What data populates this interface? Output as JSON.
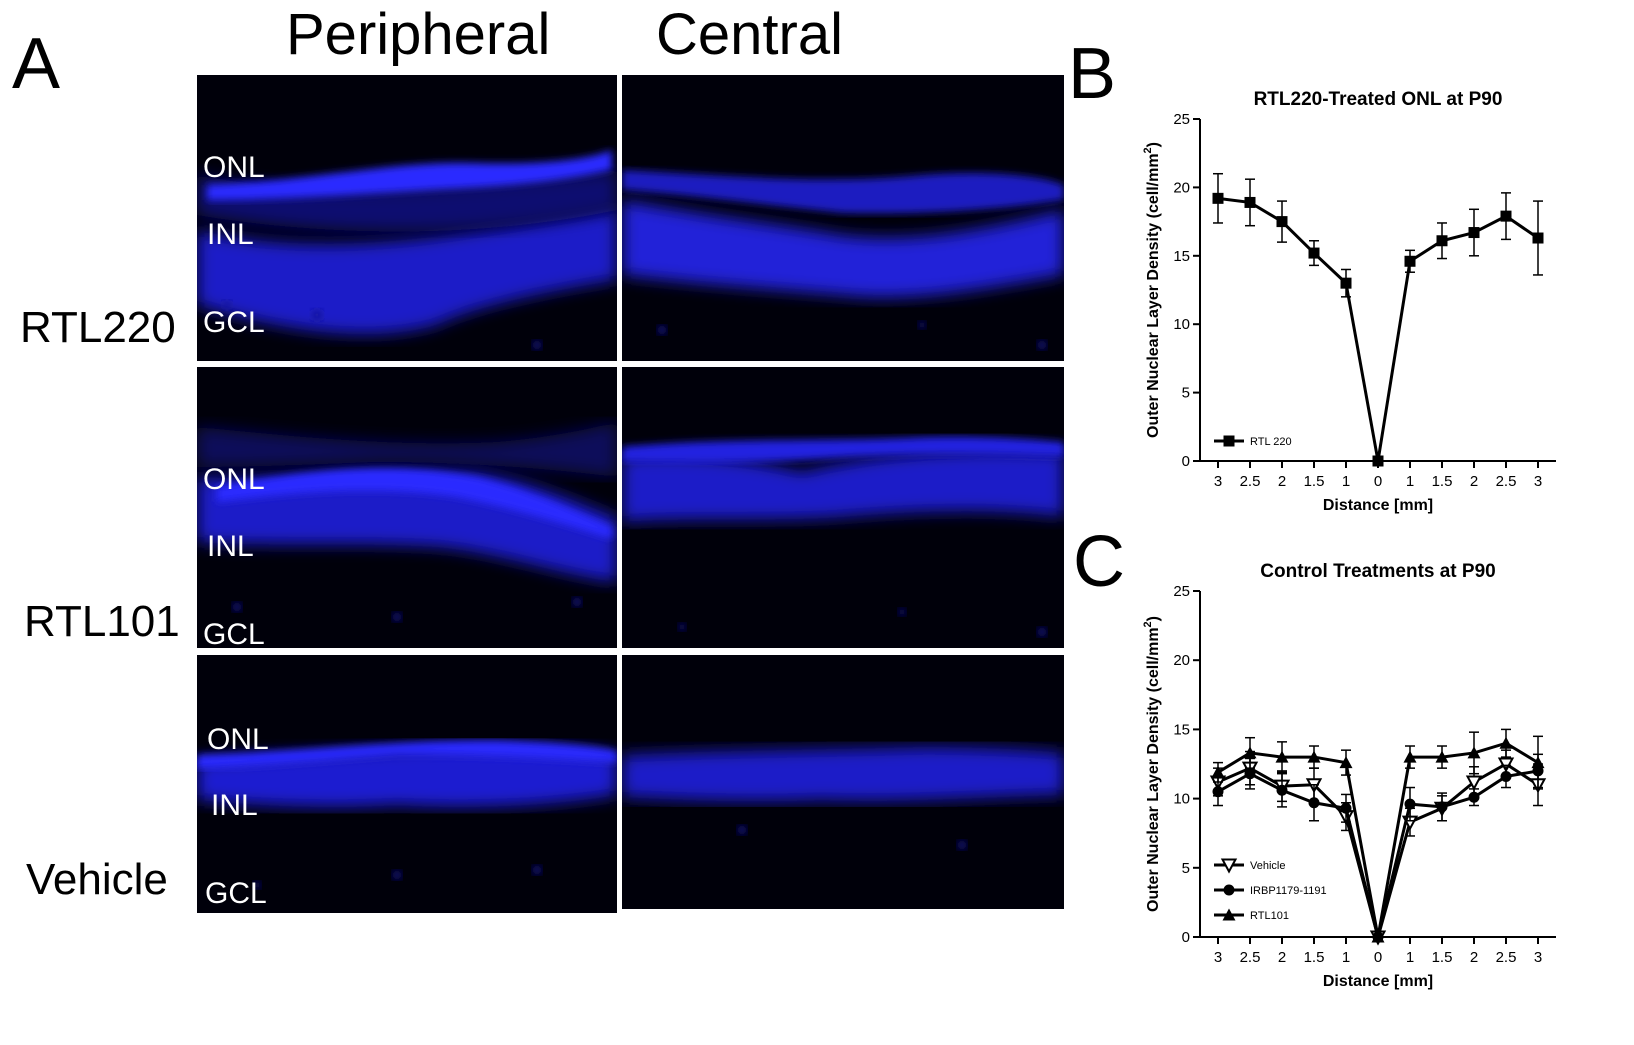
{
  "panel_a": {
    "letter": "A",
    "column_headers": [
      "Peripheral",
      "Central"
    ],
    "rows": [
      {
        "label": "RTL220",
        "peripheral_layers": [
          "ONL",
          "INL",
          "GCL"
        ]
      },
      {
        "label": "RTL101",
        "peripheral_layers": [
          "ONL",
          "INL",
          "GCL"
        ]
      },
      {
        "label": "Vehicle",
        "peripheral_layers": [
          "ONL",
          "INL",
          "GCL"
        ]
      }
    ],
    "stain_color": "#1a1aff",
    "background_color": "#00000a"
  },
  "panel_b": {
    "letter": "B"
  },
  "panel_c": {
    "letter": "C"
  },
  "chart_data": [
    {
      "type": "line",
      "title": "RTL220-Treated ONL at P90",
      "xlabel": "Distance [mm]",
      "ylabel": "Outer Nuclear Layer Density (cell/mm²)",
      "ylabel_text": "Outer Nuclear Layer Density (cell/mm",
      "ylabel_sup": "2",
      "ylabel_close": ")",
      "categories": [
        "3",
        "2.5",
        "2",
        "1.5",
        "1",
        "0",
        "1",
        "1.5",
        "2",
        "2.5",
        "3"
      ],
      "ylim": [
        0,
        25
      ],
      "yticks": [
        0,
        5,
        10,
        15,
        20,
        25
      ],
      "grid": false,
      "legend_position": "bottom-left",
      "series": [
        {
          "name": "RTL 220",
          "marker": "square",
          "values": [
            19.2,
            18.9,
            17.5,
            15.2,
            13.0,
            0.0,
            14.6,
            16.1,
            16.7,
            17.9,
            16.3
          ],
          "errors": [
            1.8,
            1.7,
            1.5,
            0.9,
            1.0,
            0.2,
            0.8,
            1.3,
            1.7,
            1.7,
            2.7
          ]
        }
      ]
    },
    {
      "type": "line",
      "title": "Control Treatments at P90",
      "xlabel": "Distance [mm]",
      "ylabel": "Outer Nuclear Layer Density (cell/mm²)",
      "ylabel_text": "Outer Nuclear Layer Density (cell/mm",
      "ylabel_sup": "2",
      "ylabel_close": ")",
      "categories": [
        "3",
        "2.5",
        "2",
        "1.5",
        "1",
        "0",
        "1",
        "1.5",
        "2",
        "2.5",
        "3"
      ],
      "ylim": [
        0,
        25
      ],
      "yticks": [
        0,
        5,
        10,
        15,
        20,
        25
      ],
      "grid": false,
      "legend_position": "bottom-left",
      "series": [
        {
          "name": "Vehicle",
          "marker": "triangle-down-open",
          "values": [
            11.2,
            12.2,
            10.9,
            11.0,
            8.7,
            0.0,
            8.3,
            9.3,
            11.2,
            12.5,
            11.0
          ],
          "errors": [
            1.0,
            1.2,
            1.1,
            1.2,
            1.0,
            0.2,
            1.0,
            0.9,
            1.1,
            1.0,
            1.5
          ]
        },
        {
          "name": "IRBP1179-1191",
          "marker": "circle",
          "values": [
            10.5,
            11.8,
            10.6,
            9.7,
            9.3,
            0.0,
            9.6,
            9.4,
            10.1,
            11.6,
            12.0
          ],
          "errors": [
            1.0,
            1.1,
            1.2,
            1.3,
            1.0,
            0.2,
            1.2,
            1.0,
            0.6,
            0.8,
            1.2
          ]
        },
        {
          "name": "RTL101",
          "marker": "triangle-up",
          "values": [
            11.9,
            13.3,
            13.0,
            13.0,
            12.6,
            0.0,
            13.0,
            13.0,
            13.3,
            14.0,
            12.6
          ],
          "errors": [
            0.7,
            1.1,
            1.1,
            0.8,
            0.9,
            0.2,
            0.8,
            0.8,
            1.5,
            1.0,
            1.9
          ]
        }
      ]
    }
  ]
}
